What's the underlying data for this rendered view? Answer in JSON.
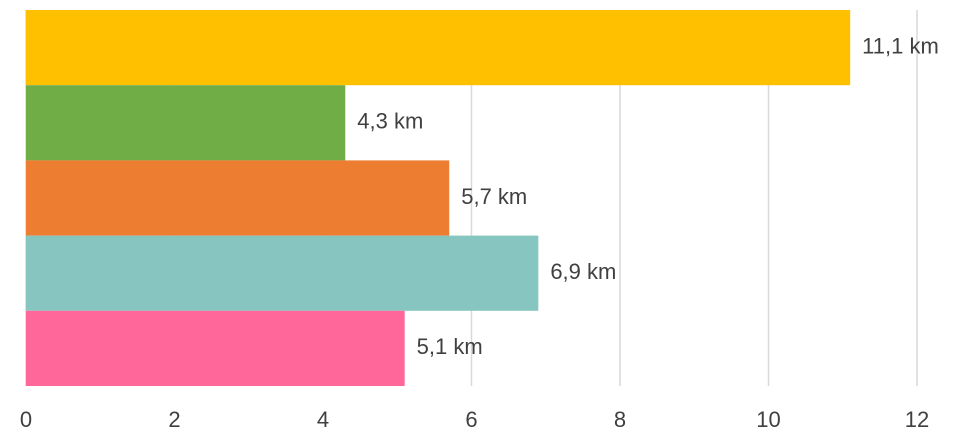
{
  "chart_data": {
    "type": "bar",
    "orientation": "horizontal",
    "categories": [
      null,
      null,
      null,
      null,
      null
    ],
    "values": [
      11.1,
      4.3,
      5.7,
      6.9,
      5.1
    ],
    "value_labels": [
      "11,1 km",
      "4,3 km",
      "5,7 km",
      "6,9 km",
      "5,1 km"
    ],
    "colors": [
      "#ffc000",
      "#70ad47",
      "#ed7d31",
      "#86c5c0",
      "#ff6699"
    ],
    "xlim": [
      0,
      12
    ],
    "xticks": [
      0,
      2,
      4,
      6,
      8,
      10,
      12
    ],
    "grid": true
  }
}
